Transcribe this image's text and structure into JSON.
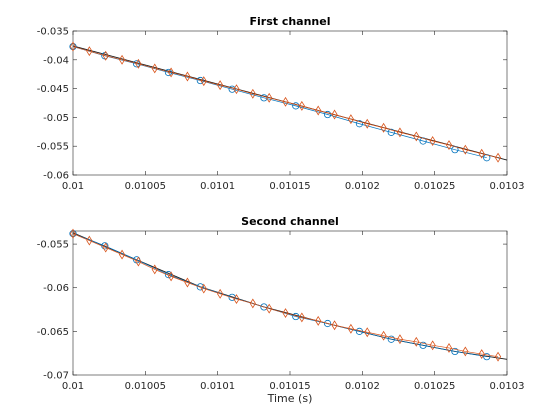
{
  "chart_data": [
    {
      "type": "line",
      "title": "First channel",
      "xlabel": "",
      "ylabel": "",
      "xlim": [
        0.01,
        0.0103
      ],
      "ylim": [
        -0.06,
        -0.035
      ],
      "xticks": [
        0.01,
        0.01005,
        0.0101,
        0.01015,
        0.0102,
        0.01025,
        0.0103
      ],
      "xtick_labels": [
        "0.01",
        "0.01005",
        "0.0101",
        "0.01015",
        "0.0102",
        "0.01025",
        "0.0103"
      ],
      "yticks": [
        -0.06,
        -0.055,
        -0.05,
        -0.045,
        -0.04,
        -0.035
      ],
      "ytick_labels": [
        "-0.06",
        "-0.055",
        "-0.05",
        "-0.045",
        "-0.04",
        "-0.035"
      ],
      "grid": false,
      "series": [
        {
          "marker": "circle",
          "color": "#0072BD",
          "x": [
            0.01,
            0.010022,
            0.010044,
            0.010066,
            0.010088,
            0.01011,
            0.010132,
            0.010154,
            0.010176,
            0.010198,
            0.01022,
            0.010242,
            0.010264,
            0.010286
          ],
          "y": [
            -0.0377,
            -0.0393,
            -0.0407,
            -0.0422,
            -0.0436,
            -0.0451,
            -0.0466,
            -0.048,
            -0.0495,
            -0.0511,
            -0.0526,
            -0.0541,
            -0.0556,
            -0.057
          ]
        },
        {
          "marker": "diamond",
          "color": "#D95319",
          "x": [
            0.01,
            0.0100113,
            0.0100226,
            0.0100339,
            0.0100452,
            0.0100565,
            0.0100678,
            0.0100791,
            0.0100904,
            0.0101017,
            0.010113,
            0.0101243,
            0.0101356,
            0.0101469,
            0.0101582,
            0.0101695,
            0.0101808,
            0.0101921,
            0.0102034,
            0.0102147,
            0.010226,
            0.0102373,
            0.0102486,
            0.0102599,
            0.0102712,
            0.0102825,
            0.0102938
          ],
          "y": [
            -0.0377,
            -0.0385,
            -0.0393,
            -0.04,
            -0.0407,
            -0.0415,
            -0.0422,
            -0.0429,
            -0.0437,
            -0.0444,
            -0.0451,
            -0.0459,
            -0.0466,
            -0.0473,
            -0.048,
            -0.0488,
            -0.0495,
            -0.0503,
            -0.0511,
            -0.0518,
            -0.0526,
            -0.0533,
            -0.0541,
            -0.0548,
            -0.0556,
            -0.0563,
            -0.057
          ]
        },
        {
          "marker": "none",
          "color": "#1a1a1a",
          "x": [
            0.01,
            0.0103
          ],
          "y": [
            -0.0376,
            -0.0574
          ]
        }
      ]
    },
    {
      "type": "line",
      "title": "Second channel",
      "xlabel": "Time (s)",
      "ylabel": "",
      "xlim": [
        0.01,
        0.0103
      ],
      "ylim": [
        -0.07,
        -0.0535
      ],
      "xticks": [
        0.01,
        0.01005,
        0.0101,
        0.01015,
        0.0102,
        0.01025,
        0.0103
      ],
      "xtick_labels": [
        "0.01",
        "0.01005",
        "0.0101",
        "0.01015",
        "0.0102",
        "0.01025",
        "0.0103"
      ],
      "yticks": [
        -0.07,
        -0.065,
        -0.06,
        -0.055
      ],
      "ytick_labels": [
        "-0.07",
        "-0.065",
        "-0.06",
        "-0.055"
      ],
      "grid": false,
      "series": [
        {
          "marker": "circle",
          "color": "#0072BD",
          "x": [
            0.01,
            0.010022,
            0.010044,
            0.010066,
            0.010088,
            0.01011,
            0.010132,
            0.010154,
            0.010176,
            0.010198,
            0.01022,
            0.010242,
            0.010264,
            0.010286
          ],
          "y": [
            -0.0538,
            -0.0552,
            -0.0568,
            -0.0585,
            -0.0599,
            -0.0611,
            -0.0622,
            -0.0633,
            -0.0641,
            -0.065,
            -0.0659,
            -0.0666,
            -0.0673,
            -0.0679
          ]
        },
        {
          "marker": "diamond",
          "color": "#D95319",
          "x": [
            0.01,
            0.0100113,
            0.0100226,
            0.0100339,
            0.0100452,
            0.0100565,
            0.0100678,
            0.0100791,
            0.0100904,
            0.0101017,
            0.010113,
            0.0101243,
            0.0101356,
            0.0101469,
            0.0101582,
            0.0101695,
            0.0101808,
            0.0101921,
            0.0102034,
            0.0102147,
            0.010226,
            0.0102373,
            0.0102486,
            0.0102599,
            0.0102712,
            0.0102825,
            0.0102938
          ],
          "y": [
            -0.0538,
            -0.0546,
            -0.0554,
            -0.0562,
            -0.057,
            -0.0579,
            -0.0587,
            -0.0594,
            -0.0601,
            -0.0607,
            -0.0613,
            -0.0618,
            -0.0624,
            -0.0629,
            -0.0634,
            -0.0638,
            -0.0643,
            -0.0647,
            -0.0651,
            -0.0655,
            -0.0659,
            -0.0662,
            -0.0666,
            -0.0669,
            -0.0673,
            -0.0676,
            -0.0679
          ]
        },
        {
          "marker": "none",
          "color": "#1a1a1a",
          "x": [
            0.01,
            0.010044,
            0.010088,
            0.010132,
            0.010176,
            0.01022,
            0.010264,
            0.0103
          ],
          "y": [
            -0.0537,
            -0.0568,
            -0.0599,
            -0.0622,
            -0.0641,
            -0.0659,
            -0.0673,
            -0.0682
          ]
        }
      ]
    }
  ]
}
